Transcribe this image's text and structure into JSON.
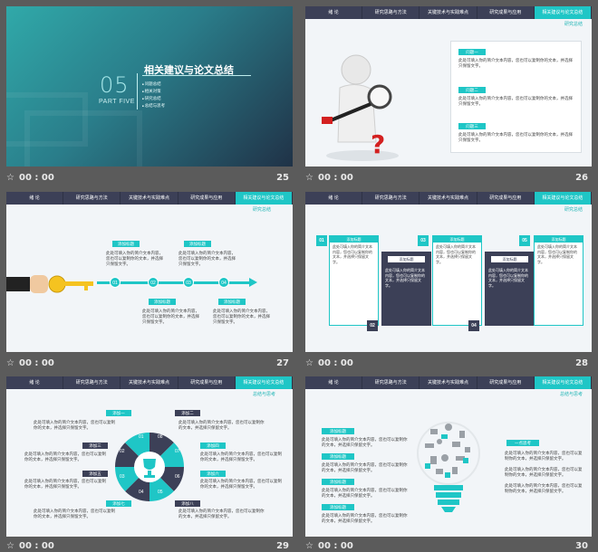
{
  "nav_tabs": [
    "绪 论",
    "研究思路与方法",
    "关键技术与实践难点",
    "研究成果与应用",
    "相关建议与论文总结"
  ],
  "subtitle": "研究总结",
  "subtitle_29": "总结与思考",
  "placeholder_text": "此处可填入你的简介文本内容，您也可以复制你的文本，并选择只保留文字。",
  "footer_time": "00 : 00",
  "slides": {
    "s25": {
      "title": "相关建议与论文总结",
      "big_number": "05",
      "part": "PART FIVE",
      "items": [
        "问题总结",
        "相关对策",
        "研究总结",
        "总结与思考"
      ],
      "number": "25"
    },
    "s26": {
      "number": "26",
      "tags": [
        "问题一",
        "问题二",
        "问题三"
      ]
    },
    "s27": {
      "number": "27",
      "tags": [
        "添加标题",
        "添加标题",
        "添加标题",
        "添加标题"
      ],
      "steps": [
        "01",
        "02",
        "03",
        "04"
      ]
    },
    "s28": {
      "number": "28",
      "nums": [
        "01",
        "02",
        "03",
        "04",
        "05"
      ],
      "cap": "添加标题"
    },
    "s29": {
      "number": "29",
      "tags": [
        "添加一",
        "添加二",
        "添加三",
        "添加四",
        "添加五",
        "添加六",
        "添加七",
        "添加八"
      ],
      "wheel": [
        "01",
        "02",
        "03",
        "04",
        "05",
        "06",
        "07",
        "08"
      ]
    },
    "s30": {
      "number": "30",
      "tags": [
        "添加标题",
        "添加标题",
        "添加标题",
        "添加标题"
      ],
      "right_tag": "一点思考"
    }
  }
}
